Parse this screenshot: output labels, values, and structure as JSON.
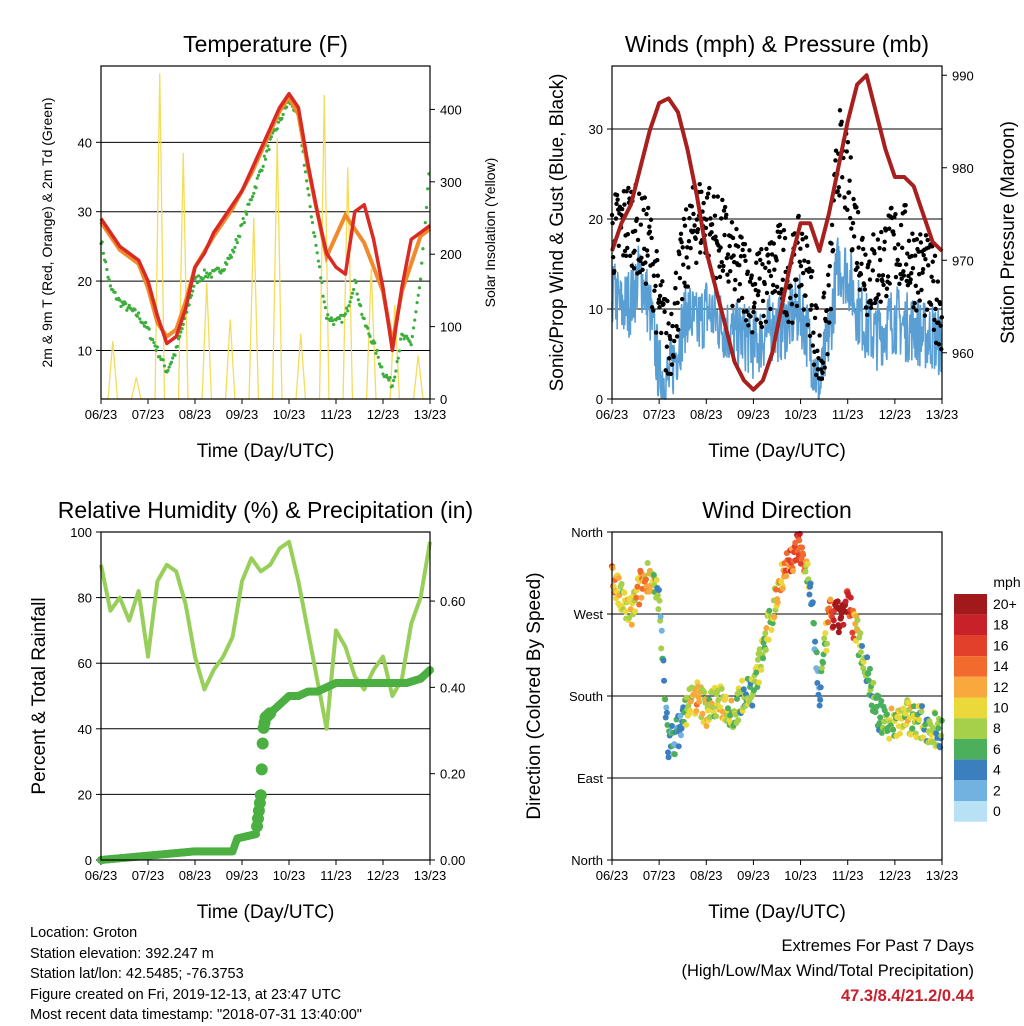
{
  "colors": {
    "temp_red": "#d92a24",
    "temp_orange": "#f08a2a",
    "dewpoint_green": "#3cae3c",
    "insolation_yellow": "#f5dc5a",
    "wind_black": "#000000",
    "wind_blue": "#5a9fd4",
    "pressure_maroon": "#a8201e",
    "rh_light_green": "#98cf5a",
    "precip_green": "#4caf42"
  },
  "footer": {
    "location": "Location: Groton",
    "elevation": "Station elevation: 392.247 m",
    "latlon": "Station lat/lon: 42.5485; -76.3753",
    "created": "Figure created on Fri, 2019-12-13, at 23:47 UTC",
    "recent": "Most recent data timestamp: \"2018-07-31 13:40:00\"",
    "extremes_title": "Extremes For Past 7 Days",
    "extremes_sub": "(High/Low/Max Wind/Total Precipitation)",
    "extremes_values": "47.3/8.4/21.2/0.44"
  },
  "chart_data": [
    {
      "type": "line",
      "title": "Temperature (F)",
      "xlabel": "Time (Day/UTC)",
      "ylabel": "2m & 9m T (Red, Orange) & 2m Td (Green)",
      "y2label": "Solar Insolation (Yellow)",
      "xticks": [
        "06/23",
        "07/23",
        "08/23",
        "09/23",
        "10/23",
        "11/23",
        "12/23",
        "13/23"
      ],
      "xlim": [
        6,
        13
      ],
      "ylim": [
        3,
        51
      ],
      "yticks": [
        10,
        20,
        30,
        40
      ],
      "y2lim": [
        0,
        460
      ],
      "y2ticks": [
        0,
        100,
        200,
        300,
        400
      ],
      "grid": true,
      "series": [
        {
          "name": "2m T",
          "axis": "left",
          "x": [
            6.0,
            6.2,
            6.4,
            6.6,
            6.8,
            7.0,
            7.2,
            7.4,
            7.6,
            7.8,
            8.0,
            8.2,
            8.4,
            8.6,
            8.8,
            9.0,
            9.2,
            9.4,
            9.6,
            9.8,
            10.0,
            10.2,
            10.4,
            10.6,
            10.8,
            11.0,
            11.2,
            11.4,
            11.6,
            11.8,
            12.0,
            12.2,
            12.4,
            12.6,
            12.8,
            13.0
          ],
          "y": [
            29,
            27,
            25,
            24,
            23,
            20,
            15,
            11,
            12,
            16,
            22,
            24,
            27,
            29,
            31,
            33,
            36,
            39,
            42,
            45,
            47,
            45,
            37,
            30,
            24,
            22,
            21,
            30,
            31,
            26,
            19,
            10,
            19,
            26,
            27,
            28
          ]
        },
        {
          "name": "9m T",
          "axis": "left",
          "x": [
            6.0,
            6.4,
            6.8,
            7.0,
            7.2,
            7.4,
            7.6,
            7.8,
            8.0,
            8.4,
            8.8,
            9.2,
            9.6,
            9.8,
            10.0,
            10.2,
            10.4,
            10.8,
            11.2,
            11.6,
            12.0,
            12.2,
            12.4,
            12.8,
            13.0
          ],
          "y": [
            28.5,
            24.5,
            22.5,
            19,
            14,
            12,
            13,
            17,
            22,
            26.5,
            30.5,
            35.5,
            41.5,
            44.5,
            46.5,
            44,
            36.5,
            23.5,
            29.5,
            25.5,
            18.5,
            11,
            18.5,
            26.5,
            27.5
          ]
        },
        {
          "name": "2m Td",
          "axis": "left",
          "x": [
            6.0,
            6.2,
            6.4,
            6.6,
            6.8,
            7.0,
            7.2,
            7.4,
            7.6,
            7.8,
            8.0,
            8.2,
            8.4,
            8.6,
            8.8,
            9.0,
            9.2,
            9.4,
            9.6,
            9.8,
            10.0,
            10.2,
            10.4,
            10.6,
            10.8,
            11.0,
            11.2,
            11.4,
            11.6,
            11.8,
            12.0,
            12.2,
            12.4,
            12.6,
            12.8,
            13.0
          ],
          "y": [
            26,
            19,
            17,
            16,
            15,
            13,
            10,
            7,
            10,
            15,
            20,
            21,
            21,
            22,
            24,
            28,
            32,
            36,
            40,
            43,
            46,
            44,
            33,
            24,
            15,
            14,
            15,
            20,
            14,
            11,
            7,
            5,
            12,
            11,
            20,
            37
          ]
        },
        {
          "name": "Solar Insolation",
          "axis": "right",
          "x": [
            6.0,
            6.15,
            6.25,
            6.35,
            6.5,
            6.65,
            6.75,
            6.85,
            7.0,
            7.15,
            7.25,
            7.35,
            7.5,
            7.65,
            7.75,
            7.85,
            8.0,
            8.15,
            8.25,
            8.35,
            8.5,
            8.65,
            8.75,
            8.85,
            9.0,
            9.15,
            9.25,
            9.35,
            9.5,
            9.65,
            9.75,
            9.85,
            10.0,
            10.15,
            10.25,
            10.35,
            10.5,
            10.65,
            10.75,
            10.85,
            11.0,
            11.15,
            11.25,
            11.35,
            11.5,
            11.65,
            11.75,
            11.85,
            12.0,
            12.15,
            12.25,
            12.35,
            12.5,
            12.65,
            12.75,
            12.85,
            13.0
          ],
          "y": [
            0,
            0,
            80,
            0,
            0,
            0,
            30,
            0,
            0,
            0,
            450,
            0,
            0,
            0,
            340,
            0,
            0,
            0,
            160,
            0,
            0,
            0,
            110,
            0,
            0,
            0,
            250,
            0,
            0,
            0,
            360,
            0,
            0,
            0,
            90,
            0,
            0,
            0,
            420,
            0,
            0,
            0,
            320,
            0,
            0,
            0,
            180,
            0,
            0,
            0,
            130,
            0,
            0,
            0,
            60,
            0,
            0
          ]
        }
      ]
    },
    {
      "type": "scatter",
      "title": "Winds (mph) & Pressure (mb)",
      "xlabel": "Time (Day/UTC)",
      "ylabel": "Sonic/Prop Wind & Gust (Blue, Black)",
      "y2label": "Station Pressure (Maroon)",
      "xticks": [
        "06/23",
        "07/23",
        "08/23",
        "09/23",
        "10/23",
        "11/23",
        "12/23",
        "13/23"
      ],
      "xlim": [
        6,
        13
      ],
      "ylim": [
        0,
        37
      ],
      "yticks": [
        0,
        10,
        20,
        30
      ],
      "y2lim": [
        955,
        991
      ],
      "y2ticks": [
        960,
        970,
        980,
        990
      ],
      "grid": true,
      "series": [
        {
          "name": "Gust",
          "axis": "left",
          "x": [
            6.0,
            6.2,
            6.4,
            6.6,
            6.8,
            7.0,
            7.2,
            7.4,
            7.6,
            7.8,
            8.0,
            8.2,
            8.4,
            8.6,
            8.8,
            9.0,
            9.2,
            9.4,
            9.6,
            9.8,
            10.0,
            10.2,
            10.4,
            10.6,
            10.8,
            11.0,
            11.2,
            11.4,
            11.6,
            11.8,
            12.0,
            12.2,
            12.4,
            12.6,
            12.8,
            13.0
          ],
          "y": [
            18,
            19,
            20,
            18,
            17,
            10,
            6,
            12,
            17,
            20,
            20,
            18,
            17,
            14,
            14,
            12,
            12,
            14,
            15,
            13,
            16,
            12,
            4,
            10,
            28,
            24,
            18,
            14,
            14,
            16,
            17,
            17,
            15,
            14,
            12,
            10
          ]
        },
        {
          "name": "Wind",
          "axis": "left",
          "x": [
            6.0,
            6.2,
            6.4,
            6.6,
            6.8,
            7.0,
            7.2,
            7.4,
            7.6,
            7.8,
            8.0,
            8.2,
            8.4,
            8.6,
            8.8,
            9.0,
            9.2,
            9.4,
            9.6,
            9.8,
            10.0,
            10.2,
            10.4,
            10.6,
            10.8,
            11.0,
            11.2,
            11.4,
            11.6,
            11.8,
            12.0,
            12.2,
            12.4,
            12.6,
            12.8,
            13.0
          ],
          "y": [
            12,
            10,
            11,
            14,
            10,
            3,
            2,
            6,
            10,
            8,
            10,
            9,
            8,
            7,
            7,
            6,
            7,
            8,
            8,
            9,
            10,
            6,
            1,
            7,
            15,
            14,
            10,
            8,
            7,
            8,
            9,
            8,
            8,
            7,
            7,
            6
          ]
        },
        {
          "name": "Station Pressure",
          "axis": "right",
          "x": [
            6.0,
            6.2,
            6.4,
            6.6,
            6.8,
            7.0,
            7.2,
            7.4,
            7.6,
            7.8,
            8.0,
            8.2,
            8.4,
            8.6,
            8.8,
            9.0,
            9.2,
            9.4,
            9.6,
            9.8,
            10.0,
            10.2,
            10.4,
            10.6,
            10.8,
            11.0,
            11.2,
            11.4,
            11.6,
            11.8,
            12.0,
            12.2,
            12.4,
            12.6,
            12.8,
            13.0
          ],
          "y": [
            971,
            974,
            976,
            980,
            984,
            987,
            987.5,
            986,
            982,
            977,
            971,
            967,
            963,
            959,
            957,
            956,
            957,
            960,
            965,
            970,
            974,
            974,
            971,
            975,
            980,
            985,
            989,
            990,
            986,
            982,
            979,
            979,
            978,
            975,
            972,
            971
          ]
        }
      ]
    },
    {
      "type": "line",
      "title": "Relative Humidity (%) & Precipitation (in)",
      "xlabel": "Time (Day/UTC)",
      "ylabel": "Percent & Total Rainfall",
      "xticks": [
        "06/23",
        "07/23",
        "08/23",
        "09/23",
        "10/23",
        "11/23",
        "12/23",
        "13/23"
      ],
      "xlim": [
        6,
        13
      ],
      "ylim": [
        0,
        100
      ],
      "yticks": [
        0,
        20,
        40,
        60,
        80,
        100
      ],
      "y2lim": [
        0,
        0.76
      ],
      "y2ticks": [
        "0.00",
        "0.20",
        "0.40",
        "0.60"
      ],
      "grid": true,
      "series": [
        {
          "name": "Relative Humidity",
          "axis": "left",
          "x": [
            6.0,
            6.2,
            6.4,
            6.6,
            6.8,
            7.0,
            7.2,
            7.4,
            7.6,
            7.8,
            8.0,
            8.2,
            8.4,
            8.6,
            8.8,
            9.0,
            9.2,
            9.4,
            9.6,
            9.8,
            10.0,
            10.2,
            10.4,
            10.6,
            10.8,
            11.0,
            11.2,
            11.4,
            11.6,
            11.8,
            12.0,
            12.2,
            12.4,
            12.6,
            12.8,
            13.0
          ],
          "y": [
            90,
            76,
            80,
            73,
            82,
            62,
            85,
            90,
            88,
            78,
            62,
            52,
            58,
            62,
            68,
            85,
            92,
            88,
            90,
            95,
            97,
            85,
            70,
            55,
            40,
            70,
            65,
            56,
            52,
            58,
            62,
            50,
            55,
            72,
            80,
            97
          ]
        },
        {
          "name": "Total Rainfall",
          "axis": "right",
          "x": [
            6.0,
            7.0,
            8.0,
            8.8,
            8.9,
            9.3,
            9.4,
            9.45,
            9.5,
            9.6,
            9.8,
            10.0,
            10.2,
            10.4,
            10.6,
            10.8,
            11.0,
            11.5,
            12.0,
            12.5,
            12.8,
            13.0
          ],
          "y": [
            0.0,
            0.01,
            0.02,
            0.02,
            0.05,
            0.06,
            0.15,
            0.3,
            0.33,
            0.34,
            0.36,
            0.38,
            0.38,
            0.39,
            0.39,
            0.4,
            0.41,
            0.41,
            0.41,
            0.41,
            0.42,
            0.44
          ]
        }
      ]
    },
    {
      "type": "scatter",
      "title": "Wind Direction",
      "xlabel": "Time (Day/UTC)",
      "ylabel": "Direction (Colored By Speed)",
      "xticks": [
        "06/23",
        "07/23",
        "08/23",
        "09/23",
        "10/23",
        "11/23",
        "12/23",
        "13/23"
      ],
      "xlim": [
        6,
        13
      ],
      "yticks": [
        "North",
        "East",
        "South",
        "West",
        "North"
      ],
      "ylim": [
        0,
        360
      ],
      "grid": true,
      "legend": {
        "title": "mph",
        "labels": [
          "20+",
          "18",
          "16",
          "14",
          "12",
          "10",
          "8",
          "6",
          "4",
          "2",
          "0"
        ],
        "colors": [
          "#a1191b",
          "#c8212a",
          "#e3402c",
          "#f26a2e",
          "#f9a83e",
          "#ebd93b",
          "#a6cf4a",
          "#4caf5c",
          "#3b7fbf",
          "#72b2e0",
          "#b8e1f5"
        ]
      },
      "x": [
        6.0,
        6.2,
        6.4,
        6.6,
        6.8,
        7.0,
        7.2,
        7.4,
        7.6,
        7.8,
        8.0,
        8.2,
        8.4,
        8.6,
        8.8,
        9.0,
        9.2,
        9.4,
        9.6,
        9.8,
        10.0,
        10.2,
        10.4,
        10.6,
        10.8,
        11.0,
        11.2,
        11.4,
        11.6,
        11.8,
        12.0,
        12.2,
        12.4,
        12.6,
        12.8,
        13.0
      ],
      "direction": [
        310,
        285,
        270,
        300,
        315,
        280,
        125,
        140,
        170,
        180,
        165,
        175,
        170,
        160,
        185,
        185,
        230,
        270,
        315,
        330,
        345,
        300,
        180,
        270,
        265,
        280,
        250,
        210,
        165,
        150,
        150,
        160,
        155,
        150,
        145,
        140
      ],
      "speed": [
        14,
        8,
        10,
        12,
        11,
        6,
        4,
        4,
        8,
        11,
        10,
        9,
        9,
        8,
        7,
        7,
        8,
        9,
        12,
        15,
        16,
        6,
        2,
        12,
        22,
        18,
        10,
        6,
        6,
        8,
        9,
        9,
        8,
        7,
        7,
        6
      ]
    }
  ]
}
